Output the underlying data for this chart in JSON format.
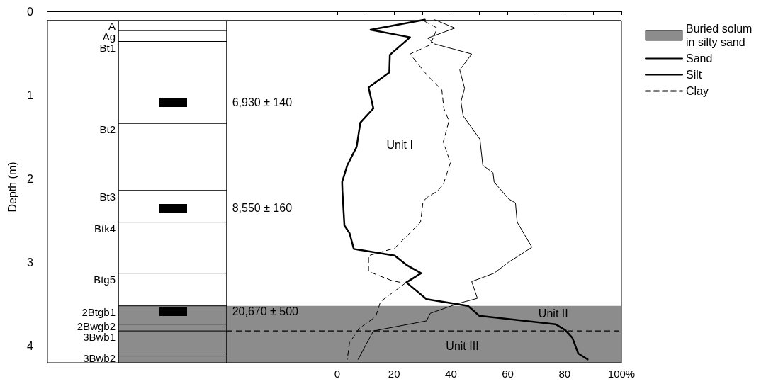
{
  "chart_data": {
    "type": "line",
    "ylabel": "Depth (m)",
    "xlim": [
      -102,
      100
    ],
    "xticks": [
      0,
      {
        "value": 10,
        "label": null
      },
      20,
      {
        "value": 30,
        "label": null
      },
      40,
      {
        "value": 50,
        "label": null
      },
      60,
      {
        "value": 70,
        "label": null
      },
      80,
      {
        "value": 90,
        "label": null
      },
      {
        "value": 100,
        "label": "100%"
      }
    ],
    "ylim": [
      4.2,
      0
    ],
    "yticks": [
      0,
      1,
      2,
      3,
      4
    ],
    "legend": "top right",
    "series": [
      {
        "name": "Sand",
        "color": "#000000",
        "line_style": "solid",
        "x": [
          30.8,
          11.7,
          25.6,
          18.5,
          18.3,
          11,
          12.7,
          8.1,
          6.8,
          3.5,
          1.7,
          1.8,
          2.5,
          4.3,
          5.8,
          20.2,
          24.3,
          29.5,
          24.3,
          31.4,
          46,
          50,
          76.8,
          80.2,
          82.7,
          84.8,
          88.1
        ],
        "values": [
          0.1,
          0.22,
          0.31,
          0.52,
          0.73,
          0.91,
          1.16,
          1.33,
          1.62,
          1.84,
          2.04,
          2.15,
          2.56,
          2.65,
          2.84,
          2.92,
          3.03,
          3.13,
          3.24,
          3.44,
          3.52,
          3.64,
          3.74,
          3.81,
          3.9,
          4.09,
          4.16
        ]
      },
      {
        "name": "Silt",
        "color": "#000000",
        "line_style": "solid",
        "x": [
          34.3,
          41.4,
          31.8,
          34.3,
          47.3,
          43.1,
          44.8,
          43.5,
          44.3,
          50.2,
          51.2,
          54.8,
          55.2,
          60.2,
          62.7,
          63.3,
          68.5,
          60.2,
          55.2,
          47.3,
          49.3,
          42.7,
          32.7,
          31.4,
          12.7,
          7.3
        ],
        "values": [
          0.1,
          0.2,
          0.32,
          0.39,
          0.51,
          0.7,
          0.92,
          1.08,
          1.25,
          1.53,
          1.84,
          1.93,
          2.04,
          2.24,
          2.29,
          2.52,
          2.82,
          3.0,
          3.13,
          3.23,
          3.43,
          3.49,
          3.61,
          3.7,
          3.82,
          4.16
        ]
      },
      {
        "name": "Clay",
        "color": "#000000",
        "line_style": "dashed",
        "x": [
          30.8,
          35.2,
          32.7,
          25.6,
          31.8,
          36.8,
          37.5,
          39.3,
          37.3,
          39.8,
          37.3,
          35.2,
          31.8,
          30.2,
          29.3,
          20.2,
          11,
          11,
          19.3,
          23.9,
          15.2,
          13.5,
          7.7,
          4.3,
          3.5
        ],
        "values": [
          0.12,
          0.2,
          0.4,
          0.51,
          0.77,
          0.94,
          1.16,
          1.31,
          1.56,
          1.81,
          2.07,
          2.15,
          2.22,
          2.27,
          2.52,
          2.83,
          2.92,
          3.11,
          3.22,
          3.25,
          3.47,
          3.65,
          3.79,
          3.96,
          4.16
        ]
      }
    ],
    "bands": [
      {
        "axis": "y",
        "from": 3.52,
        "to": 4.2,
        "label": "Buried solum in silty sand",
        "color": "#8c8c8c"
      }
    ],
    "ref_lines": [
      {
        "axis": "y",
        "value": 0.11,
        "label": "A",
        "color": "#000000",
        "line_style": "solid"
      },
      {
        "axis": "y",
        "value": 0.23,
        "label": "Ag",
        "color": "#000000",
        "line_style": "solid"
      },
      {
        "axis": "y",
        "value": 0.36,
        "label": "Bt1",
        "color": "#000000",
        "line_style": "solid"
      },
      {
        "axis": "y",
        "value": 1.34,
        "label": "Bt2",
        "color": "#000000",
        "line_style": "solid"
      },
      {
        "axis": "y",
        "value": 2.14,
        "label": "Bt3",
        "color": "#000000",
        "line_style": "solid"
      },
      {
        "axis": "y",
        "value": 2.52,
        "label": "Btk4",
        "color": "#000000",
        "line_style": "solid"
      },
      {
        "axis": "y",
        "value": 3.13,
        "label": "Btg5",
        "color": "#000000",
        "line_style": "solid"
      },
      {
        "axis": "y",
        "value": 3.52,
        "label": "2Btgb1",
        "color": "#000000",
        "line_style": "solid"
      },
      {
        "axis": "y",
        "value": 3.74,
        "label": "2Bwgb2",
        "color": "#000000",
        "line_style": "solid"
      },
      {
        "axis": "y",
        "value": 3.82,
        "label": "3Bwb1",
        "color": "#000000",
        "line_style": "solid"
      },
      {
        "axis": "y",
        "value": 4.12,
        "label": "3Bwb2",
        "color": "#000000",
        "line_style": "solid"
      },
      {
        "axis": "y",
        "value": 3.82,
        "label": null,
        "color": "#000000",
        "line_style": "dashed"
      }
    ],
    "annotations": [
      "6,930 ± 140",
      "8,550 ± 160",
      "20,670 ± 500",
      "Unit I",
      "Unit II",
      "Unit III"
    ]
  }
}
